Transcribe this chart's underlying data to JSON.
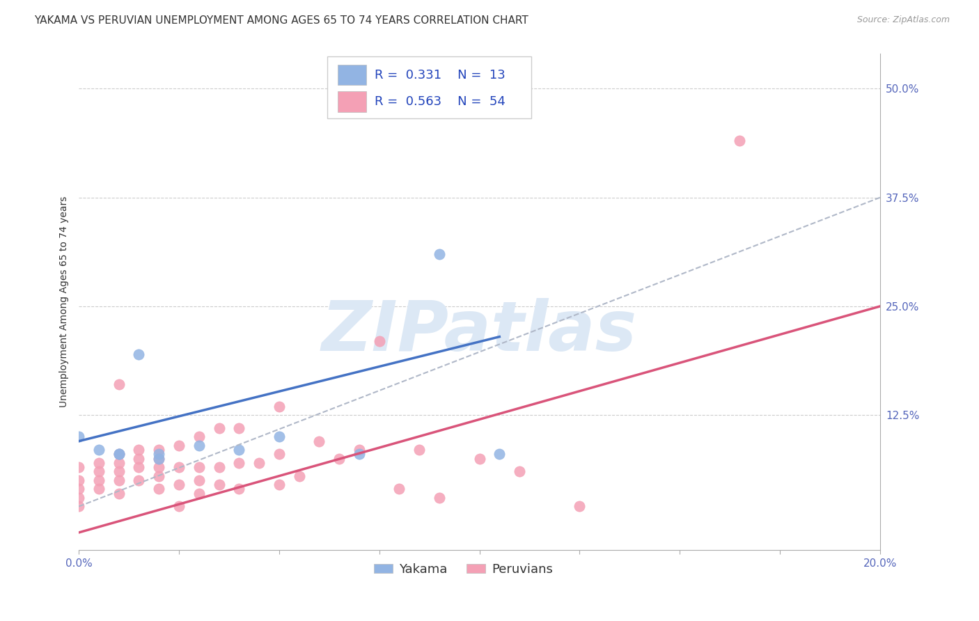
{
  "title": "YAKAMA VS PERUVIAN UNEMPLOYMENT AMONG AGES 65 TO 74 YEARS CORRELATION CHART",
  "source": "Source: ZipAtlas.com",
  "ylabel": "Unemployment Among Ages 65 to 74 years",
  "xlim": [
    0.0,
    0.2
  ],
  "ylim": [
    -0.03,
    0.54
  ],
  "xticks": [
    0.0,
    0.025,
    0.05,
    0.075,
    0.1,
    0.125,
    0.15,
    0.175,
    0.2
  ],
  "yticks_right": [
    0.0,
    0.125,
    0.25,
    0.375,
    0.5
  ],
  "ytick_labels_right": [
    "",
    "12.5%",
    "25.0%",
    "37.5%",
    "50.0%"
  ],
  "xtick_labels": [
    "0.0%",
    "",
    "",
    "",
    "",
    "",
    "",
    "",
    "20.0%"
  ],
  "yakama_color": "#92b4e3",
  "peruvian_color": "#f4a0b5",
  "yakama_line_color": "#4472c4",
  "peruvian_line_color": "#d9547a",
  "dashed_line_color": "#b0b8c8",
  "background_color": "#ffffff",
  "grid_color": "#cccccc",
  "watermark_text": "ZIPatlas",
  "watermark_color": "#dce8f5",
  "title_fontsize": 11,
  "axis_label_fontsize": 10,
  "tick_fontsize": 11,
  "legend_fontsize": 13,
  "yakama_x": [
    0.0,
    0.005,
    0.01,
    0.01,
    0.015,
    0.02,
    0.02,
    0.03,
    0.04,
    0.05,
    0.07,
    0.09,
    0.105
  ],
  "yakama_y": [
    0.1,
    0.085,
    0.08,
    0.08,
    0.195,
    0.075,
    0.08,
    0.09,
    0.085,
    0.1,
    0.08,
    0.31,
    0.08
  ],
  "peruvian_x": [
    0.0,
    0.0,
    0.0,
    0.0,
    0.0,
    0.005,
    0.005,
    0.005,
    0.005,
    0.01,
    0.01,
    0.01,
    0.01,
    0.01,
    0.01,
    0.015,
    0.015,
    0.015,
    0.015,
    0.02,
    0.02,
    0.02,
    0.02,
    0.02,
    0.025,
    0.025,
    0.025,
    0.025,
    0.03,
    0.03,
    0.03,
    0.03,
    0.035,
    0.035,
    0.035,
    0.04,
    0.04,
    0.04,
    0.045,
    0.05,
    0.05,
    0.05,
    0.055,
    0.06,
    0.065,
    0.07,
    0.075,
    0.08,
    0.085,
    0.09,
    0.1,
    0.11,
    0.125,
    0.165
  ],
  "peruvian_y": [
    0.02,
    0.03,
    0.04,
    0.05,
    0.065,
    0.04,
    0.05,
    0.06,
    0.07,
    0.035,
    0.05,
    0.06,
    0.07,
    0.08,
    0.16,
    0.05,
    0.065,
    0.075,
    0.085,
    0.04,
    0.055,
    0.065,
    0.075,
    0.085,
    0.02,
    0.045,
    0.065,
    0.09,
    0.035,
    0.05,
    0.065,
    0.1,
    0.045,
    0.065,
    0.11,
    0.04,
    0.07,
    0.11,
    0.07,
    0.045,
    0.08,
    0.135,
    0.055,
    0.095,
    0.075,
    0.085,
    0.21,
    0.04,
    0.085,
    0.03,
    0.075,
    0.06,
    0.02,
    0.44
  ],
  "yakama_trend_x": [
    0.0,
    0.105
  ],
  "yakama_trend_y": [
    0.095,
    0.215
  ],
  "peruvian_trend_x": [
    0.0,
    0.2
  ],
  "peruvian_trend_y": [
    -0.01,
    0.25
  ],
  "dashed_trend_x": [
    0.0,
    0.2
  ],
  "dashed_trend_y": [
    0.02,
    0.375
  ]
}
